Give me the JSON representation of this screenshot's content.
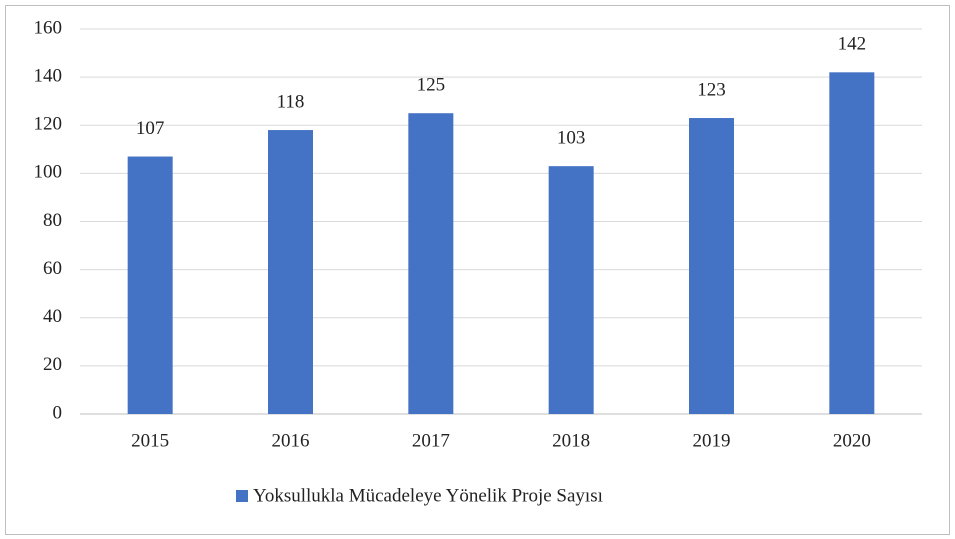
{
  "chart_data": {
    "type": "bar",
    "categories": [
      "2015",
      "2016",
      "2017",
      "2018",
      "2019",
      "2020"
    ],
    "series": [
      {
        "name": "Yoksullukla Mücadeleye Yönelik Proje Sayısı",
        "color": "#4472c4",
        "values": [
          107,
          118,
          125,
          103,
          123,
          142
        ]
      }
    ],
    "ylim": [
      0,
      160
    ],
    "yticks": [
      0,
      20,
      40,
      60,
      80,
      100,
      120,
      140,
      160
    ],
    "grid": true,
    "legend": "bottom"
  }
}
